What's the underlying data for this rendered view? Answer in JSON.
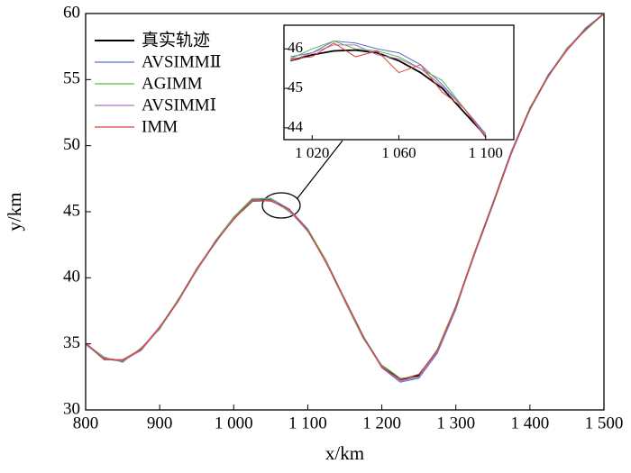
{
  "chart_data": [
    {
      "type": "line",
      "x_label": "x/km",
      "y_label": "y/km",
      "x": [
        800,
        825,
        850,
        875,
        900,
        925,
        950,
        975,
        1000,
        1025,
        1050,
        1075,
        1100,
        1125,
        1150,
        1175,
        1200,
        1225,
        1250,
        1275,
        1300,
        1325,
        1350,
        1375,
        1400,
        1425,
        1450,
        1475,
        1500
      ],
      "series": [
        {
          "name": "真实轨迹",
          "color": "#000000",
          "values": [
            35.0,
            33.9,
            33.7,
            34.6,
            36.2,
            38.3,
            40.6,
            42.7,
            44.5,
            45.8,
            45.9,
            45.1,
            43.6,
            41.2,
            38.3,
            35.5,
            33.3,
            32.3,
            32.6,
            34.5,
            37.8,
            41.8,
            45.6,
            49.5,
            52.8,
            55.3,
            57.3,
            58.8,
            60.0
          ]
        },
        {
          "name": "AVSIMMⅡ",
          "color": "#5a6fc9",
          "values": [
            35.0,
            33.8,
            33.8,
            34.5,
            36.3,
            38.2,
            40.7,
            42.6,
            44.6,
            45.9,
            46.0,
            45.2,
            43.7,
            41.1,
            38.4,
            35.6,
            33.2,
            32.1,
            32.4,
            34.3,
            37.6,
            41.9,
            45.5,
            49.6,
            52.7,
            55.4,
            57.2,
            58.9,
            60.0
          ]
        },
        {
          "name": "AGIMM",
          "color": "#5cb84a",
          "values": [
            35.0,
            34.0,
            33.6,
            34.7,
            36.1,
            38.4,
            40.5,
            42.8,
            44.6,
            46.0,
            46.0,
            45.0,
            43.7,
            41.3,
            38.2,
            35.4,
            33.4,
            32.4,
            32.5,
            34.6,
            37.9,
            41.7,
            45.7,
            49.4,
            52.9,
            55.2,
            57.4,
            58.7,
            60.0
          ]
        },
        {
          "name": "AVSIMMⅠ",
          "color": "#b070c0",
          "values": [
            35.0,
            33.9,
            33.7,
            34.5,
            36.2,
            38.3,
            40.6,
            42.7,
            44.5,
            45.8,
            45.9,
            45.1,
            43.5,
            41.2,
            38.3,
            35.5,
            33.3,
            32.2,
            32.5,
            34.4,
            37.7,
            41.8,
            45.6,
            49.5,
            52.8,
            55.3,
            57.3,
            58.8,
            60.0
          ]
        },
        {
          "name": "IMM",
          "color": "#e0403a",
          "values": [
            35.1,
            33.8,
            33.8,
            34.6,
            36.3,
            38.2,
            40.7,
            42.7,
            44.4,
            45.9,
            45.8,
            45.2,
            43.6,
            41.1,
            38.4,
            35.5,
            33.2,
            32.3,
            32.7,
            34.5,
            37.8,
            41.9,
            45.6,
            49.4,
            52.8,
            55.3,
            57.2,
            58.8,
            60.0
          ]
        }
      ],
      "xlim": [
        800,
        1500
      ],
      "xticks": [
        800,
        900,
        {
          "value": 1000,
          "label": "1 000"
        },
        {
          "value": 1100,
          "label": "1 100"
        },
        {
          "value": 1200,
          "label": "1 200"
        },
        {
          "value": 1300,
          "label": "1 300"
        },
        {
          "value": 1400,
          "label": "1 400"
        },
        {
          "value": 1500,
          "label": "1 500"
        }
      ],
      "ylim": [
        30,
        60
      ],
      "yticks": [
        30,
        35,
        40,
        45,
        50,
        55,
        60
      ],
      "legend": "upper left"
    },
    {
      "type": "line",
      "x": [
        1010,
        1020,
        1030,
        1040,
        1050,
        1060,
        1070,
        1080,
        1090,
        1100
      ],
      "series": [
        {
          "color": "#000000",
          "values": [
            45.7,
            45.85,
            45.95,
            45.97,
            45.9,
            45.7,
            45.4,
            45.0,
            44.4,
            43.8
          ]
        },
        {
          "color": "#5a6fc9",
          "values": [
            45.8,
            45.9,
            46.2,
            46.15,
            46.0,
            45.9,
            45.6,
            45.1,
            44.5,
            43.85
          ]
        },
        {
          "color": "#5cb84a",
          "values": [
            45.75,
            46.0,
            46.2,
            46.0,
            45.95,
            45.8,
            45.5,
            45.2,
            44.5,
            43.8
          ]
        },
        {
          "color": "#b070c0",
          "values": [
            45.7,
            45.9,
            46.1,
            46.1,
            45.85,
            45.75,
            45.5,
            45.05,
            44.5,
            43.8
          ]
        },
        {
          "color": "#e0403a",
          "values": [
            45.75,
            45.8,
            46.15,
            45.8,
            45.95,
            45.4,
            45.6,
            44.9,
            44.5,
            43.75
          ]
        }
      ],
      "xlim": [
        1007,
        1113
      ],
      "xticks": [
        {
          "value": 1020,
          "label": "1 020"
        },
        {
          "value": 1060,
          "label": "1 060"
        },
        {
          "value": 1100,
          "label": "1 100"
        }
      ],
      "ylim": [
        43.7,
        46.6
      ],
      "yticks": [
        44,
        45,
        46
      ]
    }
  ]
}
